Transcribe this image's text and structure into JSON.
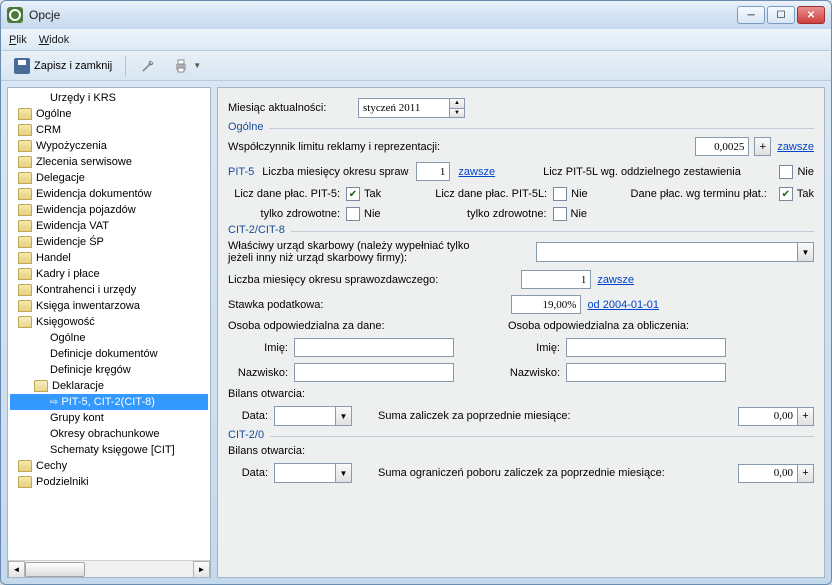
{
  "window": {
    "title": "Opcje"
  },
  "menu": {
    "file": "Plik",
    "view": "Widok"
  },
  "toolbar": {
    "save_close": "Zapisz i zamknij"
  },
  "tree": {
    "items": [
      {
        "label": "Urzędy i KRS",
        "indent": 40,
        "folder": false
      },
      {
        "label": "Ogólne",
        "indent": 8,
        "folder": true
      },
      {
        "label": "CRM",
        "indent": 8,
        "folder": true
      },
      {
        "label": "Wypożyczenia",
        "indent": 8,
        "folder": true
      },
      {
        "label": "Zlecenia serwisowe",
        "indent": 8,
        "folder": true
      },
      {
        "label": "Delegacje",
        "indent": 8,
        "folder": true
      },
      {
        "label": "Ewidencja dokumentów",
        "indent": 8,
        "folder": true
      },
      {
        "label": "Ewidencja pojazdów",
        "indent": 8,
        "folder": true
      },
      {
        "label": "Ewidencja VAT",
        "indent": 8,
        "folder": true
      },
      {
        "label": "Ewidencje ŚP",
        "indent": 8,
        "folder": true
      },
      {
        "label": "Handel",
        "indent": 8,
        "folder": true
      },
      {
        "label": "Kadry i płace",
        "indent": 8,
        "folder": true
      },
      {
        "label": "Kontrahenci i urzędy",
        "indent": 8,
        "folder": true
      },
      {
        "label": "Księga inwentarzowa",
        "indent": 8,
        "folder": true
      },
      {
        "label": "Księgowość",
        "indent": 8,
        "folder": true,
        "open": true
      },
      {
        "label": "Ogólne",
        "indent": 40,
        "folder": false
      },
      {
        "label": "Definicje dokumentów",
        "indent": 40,
        "folder": false
      },
      {
        "label": "Definicje kręgów",
        "indent": 40,
        "folder": false
      },
      {
        "label": "Deklaracje",
        "indent": 24,
        "folder": true,
        "open": true
      },
      {
        "label": "PIT-5, CIT-2(CIT-8)",
        "indent": 40,
        "folder": false,
        "selected": true,
        "arrow": true
      },
      {
        "label": "Grupy kont",
        "indent": 40,
        "folder": false
      },
      {
        "label": "Okresy obrachunkowe",
        "indent": 40,
        "folder": false
      },
      {
        "label": "Schematy księgowe [CIT]",
        "indent": 40,
        "folder": false
      },
      {
        "label": "Cechy",
        "indent": 8,
        "folder": true
      },
      {
        "label": "Podzielniki",
        "indent": 8,
        "folder": true
      }
    ]
  },
  "form": {
    "month_label": "Miesiąc aktualności:",
    "month_value": "styczeń 2011",
    "sec_ogolne": "Ogólne",
    "coef_label": "Współczynnik limitu reklamy i reprezentacji:",
    "coef_value": "0,0025",
    "always": "zawsze",
    "pit5": "PIT-5",
    "months_label": "Liczba miesięcy okresu spraw",
    "months_value": "1",
    "pit5l_label": "Licz PIT-5L wg. oddzielnego zestawienia",
    "licz_plac_pit5": "Licz dane płac. PIT-5:",
    "licz_plac_pit5l": "Licz dane płac. PIT-5L:",
    "dane_plac_termin": "Dane płac. wg terminu płat.:",
    "tylko_zdrow": "tylko zdrowotne:",
    "tak": "Tak",
    "nie": "Nie",
    "sec_cit28": "CIT-2/CIT-8",
    "urzad_label": "Właściwy urząd skarbowy (należy wypełniać tylko jeżeli inny niż urząd skarbowy firmy):",
    "months_rep_label": "Liczba miesięcy okresu sprawozdawczego:",
    "months_rep_value": "1",
    "stawka_label": "Stawka podatkowa:",
    "stawka_value": "19,00%",
    "date_link": "od 2004-01-01",
    "osoba_dane": "Osoba odpowiedzialna za dane:",
    "osoba_obl": "Osoba odpowiedzialna za obliczenia:",
    "imie": "Imię:",
    "nazwisko": "Nazwisko:",
    "bilans": "Bilans otwarcia:",
    "data": "Data:",
    "suma_zal": "Suma zaliczek za poprzednie miesiące:",
    "zero": "0,00",
    "sec_cit20": "CIT-2/0",
    "suma_ogr": "Suma ograniczeń poboru zaliczek za poprzednie miesiące:"
  }
}
